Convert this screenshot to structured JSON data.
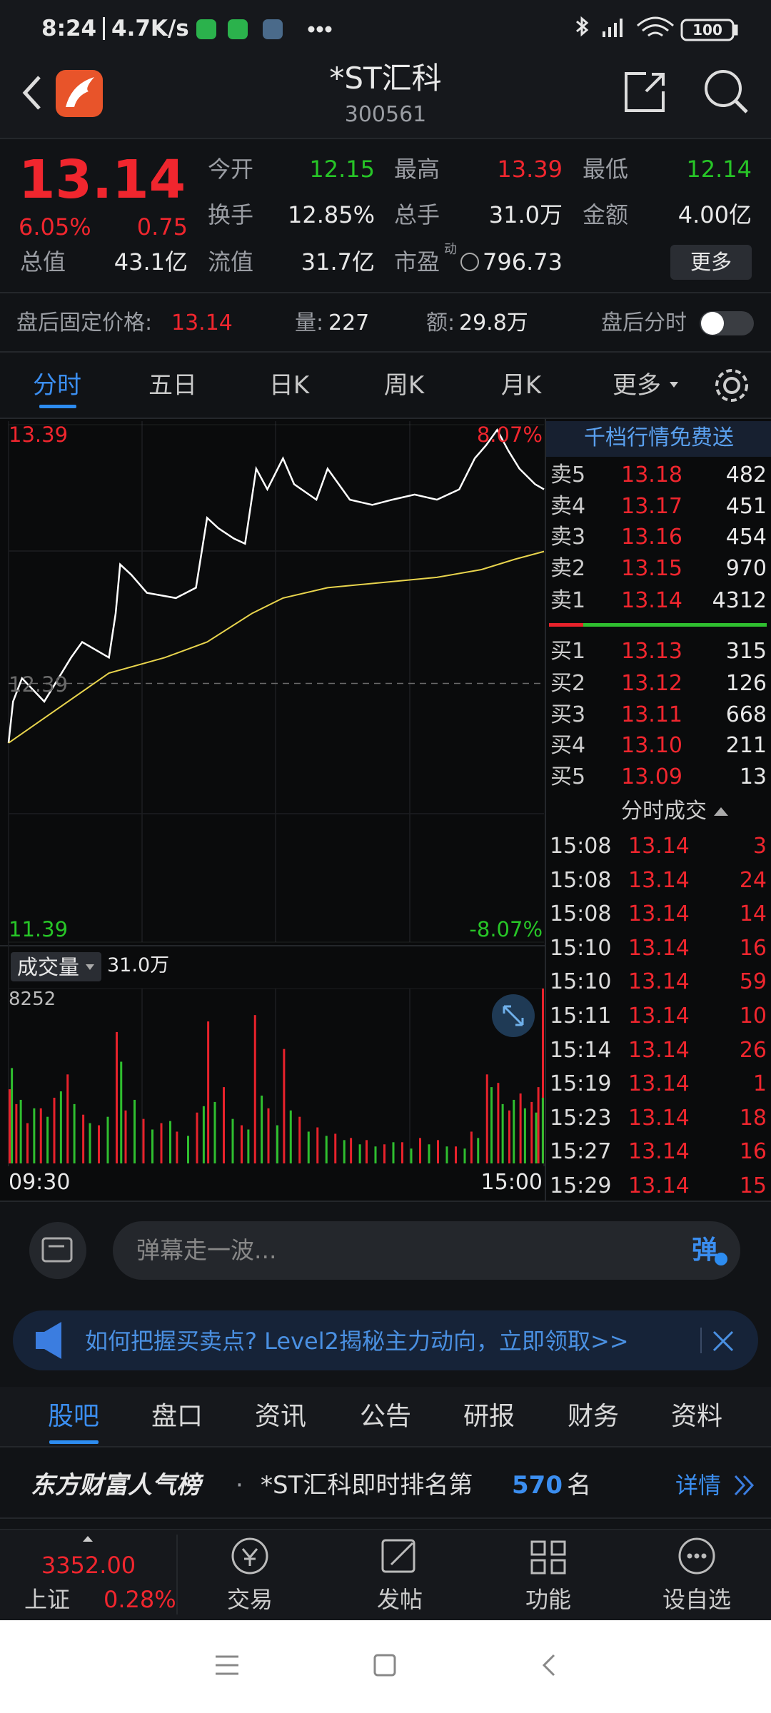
{
  "status": {
    "time": "8:24",
    "speed": "4.7K/s",
    "battery": "100"
  },
  "header": {
    "title": "*ST汇科",
    "code": "300561"
  },
  "quote": {
    "price": "13.14",
    "change_pct": "6.05%",
    "change": "0.75",
    "fields": [
      [
        "今开",
        "12.15"
      ],
      [
        "最高",
        "13.39"
      ],
      [
        "最低",
        "12.14"
      ],
      [
        "换手",
        "12.85%"
      ],
      [
        "总手",
        "31.0万"
      ],
      [
        "金额",
        "4.00亿"
      ],
      [
        "总值",
        "43.1亿"
      ],
      [
        "流值",
        "31.7亿"
      ],
      [
        "市盈",
        "796.73"
      ]
    ],
    "pe_tag": "动",
    "more": "更多"
  },
  "after_hours": {
    "label": "盘后固定价格:",
    "price": "13.14",
    "vol_label": "量:",
    "vol": "227",
    "amt_label": "额:",
    "amt": "29.8万",
    "toggle": "盘后分时"
  },
  "tabs": [
    "分时",
    "五日",
    "日K",
    "周K",
    "月K",
    "更多"
  ],
  "order_book": {
    "title": "千档行情免费送",
    "sell": [
      [
        "卖5",
        "13.18",
        "482"
      ],
      [
        "卖4",
        "13.17",
        "451"
      ],
      [
        "卖3",
        "13.16",
        "454"
      ],
      [
        "卖2",
        "13.15",
        "970"
      ],
      [
        "卖1",
        "13.14",
        "4312"
      ]
    ],
    "buy": [
      [
        "买1",
        "13.13",
        "315"
      ],
      [
        "买2",
        "13.12",
        "126"
      ],
      [
        "买3",
        "13.11",
        "668"
      ],
      [
        "买4",
        "13.10",
        "211"
      ],
      [
        "买5",
        "13.09",
        "13"
      ]
    ]
  },
  "trades": {
    "title": "分时成交",
    "rows": [
      [
        "15:08",
        "13.14",
        "3"
      ],
      [
        "15:08",
        "13.14",
        "24"
      ],
      [
        "15:08",
        "13.14",
        "14"
      ],
      [
        "15:10",
        "13.14",
        "16"
      ],
      [
        "15:10",
        "13.14",
        "59"
      ],
      [
        "15:11",
        "13.14",
        "10"
      ],
      [
        "15:14",
        "13.14",
        "26"
      ],
      [
        "15:19",
        "13.14",
        "1"
      ],
      [
        "15:23",
        "13.14",
        "18"
      ],
      [
        "15:27",
        "13.14",
        "16"
      ],
      [
        "15:29",
        "13.14",
        "15"
      ]
    ]
  },
  "chart_data": [
    {
      "type": "line",
      "xlim": [
        0,
        240
      ],
      "ylim": [
        11.39,
        13.39
      ],
      "yticks": [
        11.39,
        12.39,
        13.39
      ],
      "upper_label": "8.07%",
      "lower_label": "-8.07%",
      "series": [
        {
          "color": "#ffffff",
          "x": [
            0,
            2,
            6,
            16,
            28,
            33,
            45,
            48,
            50,
            55,
            62,
            75,
            84,
            89,
            94,
            101,
            106,
            111,
            116,
            123,
            128,
            138,
            143,
            153,
            163,
            172,
            182,
            192,
            202,
            209,
            214,
            219,
            224,
            229,
            236,
            240
          ],
          "values": [
            12.16,
            12.32,
            12.41,
            12.32,
            12.49,
            12.55,
            12.49,
            12.66,
            12.85,
            12.81,
            12.74,
            12.72,
            12.76,
            13.03,
            12.99,
            12.95,
            12.93,
            13.22,
            13.14,
            13.26,
            13.16,
            13.1,
            13.22,
            13.1,
            13.08,
            13.1,
            13.12,
            13.1,
            13.14,
            13.26,
            13.31,
            13.37,
            13.29,
            13.22,
            13.16,
            13.14
          ]
        },
        {
          "color": "#e8d44d",
          "x": [
            0,
            45,
            70,
            89,
            109,
            123,
            143,
            192,
            212,
            227,
            240
          ],
          "values": [
            12.16,
            12.43,
            12.49,
            12.55,
            12.66,
            12.72,
            12.76,
            12.8,
            12.83,
            12.87,
            12.9
          ]
        }
      ]
    },
    {
      "type": "bar",
      "title": "成交量",
      "total": "31.0万",
      "xlim": [
        0,
        240
      ],
      "xticks": [
        {
          "value": 0,
          "label": "09:30"
        },
        {
          "value": 240,
          "label": "15:00"
        }
      ],
      "ylim": [
        0,
        8252
      ],
      "yticks": [
        8252
      ],
      "series": [
        {
          "color": "#e8222b",
          "x": [
            0,
            3,
            8,
            14,
            20,
            26,
            33,
            40,
            48,
            52,
            60,
            68,
            75,
            84,
            89,
            96,
            104,
            110,
            116,
            123,
            130,
            138,
            146,
            153,
            160,
            168,
            176,
            184,
            192,
            200,
            207,
            214,
            219,
            224,
            229,
            234,
            237,
            240
          ],
          "values": [
            3500,
            2800,
            1900,
            2600,
            3100,
            4200,
            2300,
            1800,
            6200,
            2500,
            2100,
            1900,
            1500,
            2400,
            6700,
            3600,
            1800,
            7000,
            2600,
            5400,
            2200,
            1700,
            1400,
            1200,
            1100,
            900,
            1000,
            1200,
            1100,
            800,
            1500,
            4200,
            3800,
            2500,
            3300,
            2900,
            3600,
            8252
          ]
        },
        {
          "color": "#2fbf2f",
          "x": [
            1,
            5,
            11,
            17,
            23,
            29,
            36,
            44,
            50,
            56,
            64,
            72,
            80,
            87,
            92,
            100,
            107,
            113,
            120,
            126,
            134,
            142,
            150,
            157,
            164,
            172,
            180,
            188,
            196,
            204,
            210,
            216,
            221,
            226,
            231,
            236,
            239
          ],
          "values": [
            4500,
            3000,
            2600,
            2200,
            3400,
            2800,
            1900,
            2200,
            4800,
            3000,
            1600,
            2000,
            1300,
            2700,
            2900,
            2100,
            1600,
            3200,
            1800,
            2500,
            1500,
            1300,
            1100,
            900,
            800,
            1000,
            700,
            900,
            800,
            700,
            1200,
            3600,
            2800,
            3000,
            2600,
            2400,
            3100
          ]
        }
      ]
    }
  ],
  "comment": {
    "placeholder": "弹幕走一波...",
    "button": "弹"
  },
  "banner": "如何把握买卖点? Level2揭秘主力动向，立即领取>>",
  "bottom_tabs": [
    "股吧",
    "盘口",
    "资讯",
    "公告",
    "研报",
    "财务",
    "资料"
  ],
  "rank": {
    "brand": "东方财富人气榜",
    "dot": "·",
    "text": "*ST汇科即时排名第",
    "rank": "570",
    "unit": "名",
    "detail": "详情"
  },
  "index": {
    "value": "3352.00",
    "name": "上证",
    "change": "0.28%"
  },
  "nav": [
    "交易",
    "发帖",
    "功能",
    "设自选"
  ]
}
